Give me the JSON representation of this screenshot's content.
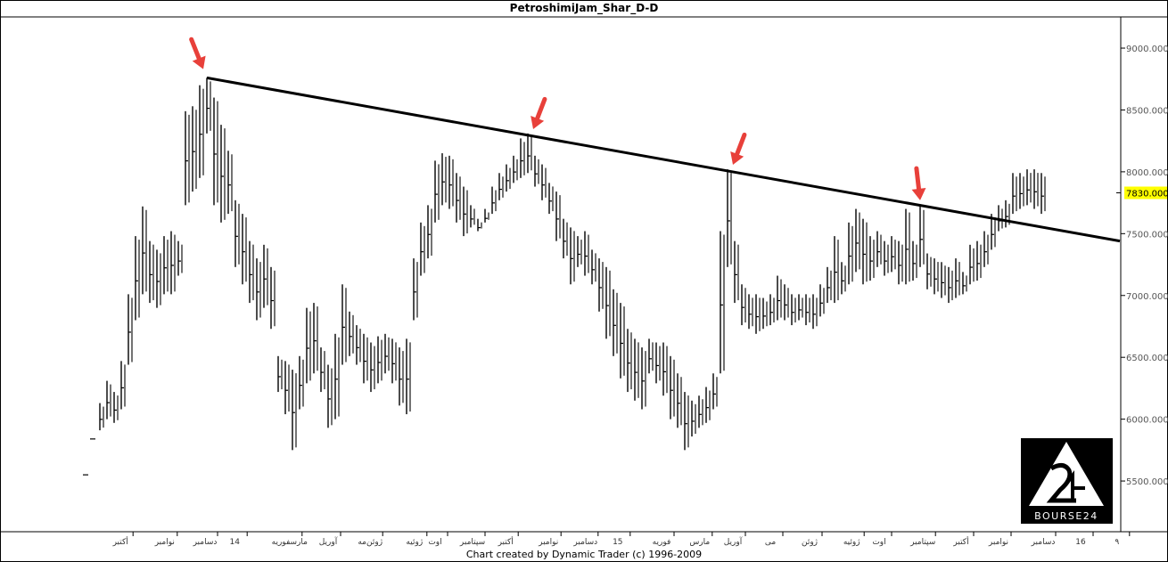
{
  "title": "PetroshimiJam_Shar_D-D",
  "footer": "Chart created by Dynamic Trader  (c) 1996-2009",
  "logo_text": "BOURSE24",
  "chart_data": {
    "type": "ohlc-bar",
    "title": "PetroshimiJam_Shar_D-D",
    "ylim": [
      5090,
      9245
    ],
    "y_axis_position": "right",
    "yticks": [
      5500,
      6000,
      6500,
      7000,
      7500,
      8000,
      8500,
      9000
    ],
    "ytick_labels": [
      "5500.0000",
      "6000.0000",
      "6500.0000",
      "7000.0000",
      "7500.0000",
      "8000.0000",
      "8500.0000",
      "9000.0000"
    ],
    "grid": false,
    "last_price": 7830,
    "last_price_label": "7830.0000",
    "last_price_color": "#ffff00",
    "xticks": [
      {
        "label": "أکتبر",
        "at": 4.9
      },
      {
        "label": "نوامبر",
        "at": 11.1
      },
      {
        "label": "دسامبر",
        "at": 16.75
      },
      {
        "label": "14",
        "at": 20.9
      },
      {
        "label": "مارسفوریه",
        "at": 28.6
      },
      {
        "label": "آوریل",
        "at": 34
      },
      {
        "label": "ژوئن‌مه",
        "at": 39.9
      },
      {
        "label": "ژوئیه",
        "at": 46.1
      },
      {
        "label": "اوت",
        "at": 49
      },
      {
        "label": "سپتامبر",
        "at": 54.25
      },
      {
        "label": "أکتبر",
        "at": 58.9
      },
      {
        "label": "نوامبر",
        "at": 64.9
      },
      {
        "label": "دسامبر",
        "at": 70.1
      },
      {
        "label": "15",
        "at": 74.6
      },
      {
        "label": "فوریه",
        "at": 80.75
      },
      {
        "label": "مارس",
        "at": 86.1
      },
      {
        "label": "آوریل",
        "at": 90.75
      },
      {
        "label": "می",
        "at": 96
      },
      {
        "label": "ژوئن",
        "at": 101.5
      },
      {
        "label": "ژوئیه",
        "at": 107.4
      },
      {
        "label": "اوت",
        "at": 111.25
      },
      {
        "label": "سپتامبر",
        "at": 117.4
      },
      {
        "label": "أکتبر",
        "at": 122.75
      },
      {
        "label": "نوامبر",
        "at": 128
      },
      {
        "label": "دسامبر",
        "at": 134.25
      },
      {
        "label": "16",
        "at": 139.5
      },
      {
        "label": "۹",
        "at": 144.6
      }
    ],
    "bars_high_low": [
      [
        5550,
        5550
      ],
      [
        5840,
        5840
      ],
      [
        6130,
        5910
      ],
      [
        6310,
        6000
      ],
      [
        6220,
        5970
      ],
      [
        6470,
        6080
      ],
      [
        7010,
        6440
      ],
      [
        7480,
        6800
      ],
      [
        7720,
        7010
      ],
      [
        7440,
        6940
      ],
      [
        7370,
        6900
      ],
      [
        7480,
        7010
      ],
      [
        7520,
        7010
      ],
      [
        7440,
        7160
      ],
      [
        8490,
        7730
      ],
      [
        8530,
        7840
      ],
      [
        8700,
        7950
      ],
      [
        8760,
        8310
      ],
      [
        8600,
        7730
      ],
      [
        8380,
        7590
      ],
      [
        8170,
        7660
      ],
      [
        7770,
        7230
      ],
      [
        7660,
        7090
      ],
      [
        7440,
        6940
      ],
      [
        7300,
        6800
      ],
      [
        7410,
        6900
      ],
      [
        7230,
        6730
      ],
      [
        6510,
        6220
      ],
      [
        6470,
        6040
      ],
      [
        6400,
        5750
      ],
      [
        6510,
        6080
      ],
      [
        6900,
        6290
      ],
      [
        6940,
        6370
      ],
      [
        6580,
        6220
      ],
      [
        6440,
        5930
      ],
      [
        6690,
        6000
      ],
      [
        7090,
        6440
      ],
      [
        6870,
        6510
      ],
      [
        6760,
        6440
      ],
      [
        6690,
        6290
      ],
      [
        6620,
        6220
      ],
      [
        6670,
        6290
      ],
      [
        6690,
        6370
      ],
      [
        6650,
        6290
      ],
      [
        6580,
        6110
      ],
      [
        6650,
        6040
      ],
      [
        7300,
        6800
      ],
      [
        7590,
        7160
      ],
      [
        7730,
        7300
      ],
      [
        8090,
        7590
      ],
      [
        8150,
        7730
      ],
      [
        8130,
        7700
      ],
      [
        7990,
        7590
      ],
      [
        7880,
        7480
      ],
      [
        7730,
        7550
      ],
      [
        7620,
        7520
      ],
      [
        7700,
        7590
      ],
      [
        7880,
        7660
      ],
      [
        7990,
        7770
      ],
      [
        8060,
        7840
      ],
      [
        8130,
        7910
      ],
      [
        8270,
        7950
      ],
      [
        8310,
        7990
      ],
      [
        8130,
        7880
      ],
      [
        8060,
        7770
      ],
      [
        7910,
        7660
      ],
      [
        7840,
        7440
      ],
      [
        7620,
        7300
      ],
      [
        7550,
        7090
      ],
      [
        7480,
        7230
      ],
      [
        7520,
        7160
      ],
      [
        7370,
        7090
      ],
      [
        7300,
        6870
      ],
      [
        7230,
        6650
      ],
      [
        7050,
        6510
      ],
      [
        6940,
        6330
      ],
      [
        6730,
        6220
      ],
      [
        6650,
        6150
      ],
      [
        6580,
        6080
      ],
      [
        6650,
        6370
      ],
      [
        6620,
        6290
      ],
      [
        6620,
        6190
      ],
      [
        6510,
        6000
      ],
      [
        6370,
        5930
      ],
      [
        6220,
        5750
      ],
      [
        6150,
        5860
      ],
      [
        6190,
        5930
      ],
      [
        6260,
        5970
      ],
      [
        6370,
        6080
      ],
      [
        7520,
        6370
      ],
      [
        8020,
        7230
      ],
      [
        7440,
        6940
      ],
      [
        7090,
        6760
      ],
      [
        7010,
        6730
      ],
      [
        7010,
        6690
      ],
      [
        6980,
        6730
      ],
      [
        7010,
        6760
      ],
      [
        7160,
        6800
      ],
      [
        7090,
        6800
      ],
      [
        7010,
        6760
      ],
      [
        7010,
        6800
      ],
      [
        7010,
        6760
      ],
      [
        7010,
        6730
      ],
      [
        7090,
        6830
      ],
      [
        7230,
        6940
      ],
      [
        7480,
        6940
      ],
      [
        7270,
        7010
      ],
      [
        7590,
        7090
      ],
      [
        7700,
        7190
      ],
      [
        7620,
        7090
      ],
      [
        7480,
        7120
      ],
      [
        7520,
        7230
      ],
      [
        7440,
        7160
      ],
      [
        7480,
        7190
      ],
      [
        7440,
        7090
      ],
      [
        7700,
        7090
      ],
      [
        7440,
        7120
      ],
      [
        7720,
        7230
      ],
      [
        7340,
        7050
      ],
      [
        7300,
        7010
      ],
      [
        7270,
        6980
      ],
      [
        7230,
        6940
      ],
      [
        7300,
        6980
      ],
      [
        7190,
        7010
      ],
      [
        7410,
        7090
      ],
      [
        7440,
        7120
      ],
      [
        7520,
        7230
      ],
      [
        7660,
        7370
      ],
      [
        7730,
        7520
      ],
      [
        7770,
        7550
      ],
      [
        7990,
        7660
      ],
      [
        7990,
        7700
      ],
      [
        8020,
        7730
      ],
      [
        8020,
        7700
      ],
      [
        7990,
        7660
      ]
    ],
    "trendline": {
      "from": {
        "x": 17,
        "y": 8760
      },
      "to": {
        "x": 145,
        "y": 7440
      },
      "color": "#000000"
    },
    "annotations": [
      {
        "type": "arrow",
        "x": 16.5,
        "y": 8830,
        "direction": "down-right",
        "color": "#e8403a"
      },
      {
        "type": "arrow",
        "x": 62.75,
        "y": 8345,
        "direction": "down-left",
        "color": "#e8403a"
      },
      {
        "type": "arrow",
        "x": 90.75,
        "y": 8057,
        "direction": "down-left",
        "color": "#e8403a"
      },
      {
        "type": "arrow",
        "x": 117,
        "y": 7770,
        "direction": "down",
        "color": "#e8403a"
      }
    ]
  }
}
